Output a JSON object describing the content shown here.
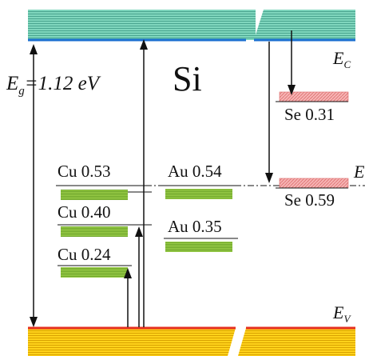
{
  "diagram": {
    "material": "Si",
    "bandgap_label": "=1.12 eV",
    "conduction_band_label": "E",
    "conduction_band_sub": "C",
    "valence_band_label": "E",
    "valence_band_sub": "V",
    "intrinsic_level_label": "E",
    "eg_label": "E",
    "eg_sub": "g",
    "levels": [
      {
        "label": "Cu 0.53",
        "type": "acceptor"
      },
      {
        "label": "Cu 0.40",
        "type": "acceptor"
      },
      {
        "label": "Cu 0.24",
        "type": "acceptor"
      },
      {
        "label": "Au 0.54",
        "type": "acceptor"
      },
      {
        "label": "Au 0.35",
        "type": "acceptor"
      },
      {
        "label": "Se 0.31",
        "type": "donor"
      },
      {
        "label": "Se 0.59",
        "type": "donor"
      }
    ],
    "colors": {
      "conduction_band": "#6cc9b0",
      "conduction_edge": "#1a6fd0",
      "valence_band": "#f2c200",
      "valence_edge": "#e53020",
      "acceptor_level": "#8fc63f",
      "donor_level": "#f39c9c"
    }
  }
}
